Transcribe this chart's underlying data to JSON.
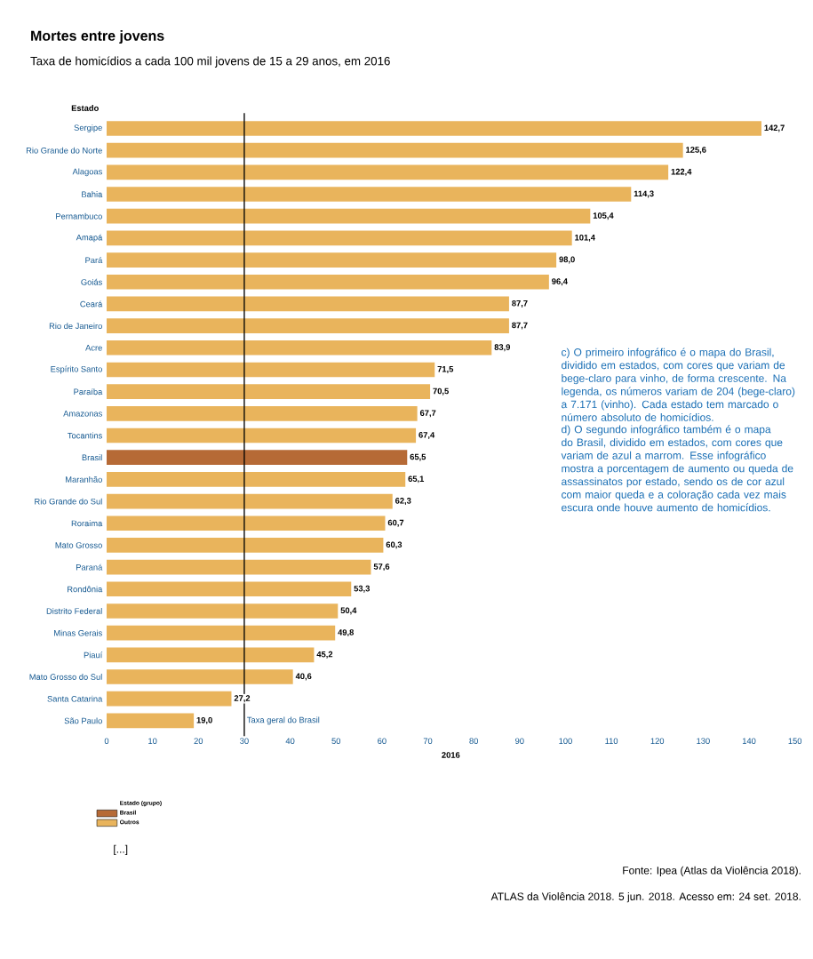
{
  "chart_data": {
    "type": "bar",
    "orientation": "horizontal",
    "title": "Mortes entre jovens",
    "subtitle": "Taxa de homicídios a cada 100 mil jovens de 15 a 29 anos, em 2016",
    "ylabel": "Estado",
    "xlabel": "2016",
    "legend_title": "Estado (grupo)",
    "categories": [
      "Sergipe",
      "Rio Grande do Norte",
      "Alagoas",
      "Bahia",
      "Pernambuco",
      "Amapá",
      "Pará",
      "Goiás",
      "Ceará",
      "Rio de Janeiro",
      "Acre",
      "Espírito Santo",
      "Paraíba",
      "Amazonas",
      "Tocantins",
      "Brasil",
      "Maranhão",
      "Rio Grande do Sul",
      "Roraima",
      "Mato Grosso",
      "Paraná",
      "Rondônia",
      "Distrito Federal",
      "Minas Gerais",
      "Piauí",
      "Mato Grosso do Sul",
      "Santa Catarina",
      "São Paulo"
    ],
    "series": [
      {
        "name": "Brasil",
        "color": "#b66a36",
        "values": [
          null,
          null,
          null,
          null,
          null,
          null,
          null,
          null,
          null,
          null,
          null,
          null,
          null,
          null,
          null,
          65.5,
          null,
          null,
          null,
          null,
          null,
          null,
          null,
          null,
          null,
          null,
          null,
          null
        ],
        "value_labels": [
          null,
          null,
          null,
          null,
          null,
          null,
          null,
          null,
          null,
          null,
          null,
          null,
          null,
          null,
          null,
          "65,5",
          null,
          null,
          null,
          null,
          null,
          null,
          null,
          null,
          null,
          null,
          null,
          null
        ]
      },
      {
        "name": "Outros",
        "color": "#e9b45c",
        "values": [
          142.7,
          125.6,
          122.4,
          114.3,
          105.4,
          101.4,
          98.0,
          96.4,
          87.7,
          87.7,
          83.9,
          71.5,
          70.5,
          67.7,
          67.4,
          null,
          65.1,
          62.3,
          60.7,
          60.3,
          57.6,
          53.3,
          50.4,
          49.8,
          45.2,
          40.6,
          27.2,
          19.0
        ],
        "value_labels": [
          "142,7",
          "125,6",
          "122,4",
          "114,3",
          "105,4",
          "101,4",
          "98,0",
          "96,4",
          "87,7",
          "87,7",
          "83,9",
          "71,5",
          "70,5",
          "67,7",
          "67,4",
          null,
          "65,1",
          "62,3",
          "60,7",
          "60,3",
          "57,6",
          "53,3",
          "50,4",
          "49,8",
          "45,2",
          "40,6",
          "27,2",
          "19,0"
        ]
      }
    ],
    "xlim": [
      0,
      150
    ],
    "xticks": [
      0,
      10,
      20,
      30,
      40,
      50,
      60,
      70,
      80,
      90,
      100,
      110,
      120,
      130,
      140,
      150
    ],
    "grid": false,
    "legend": "bottom left",
    "ref_lines": [
      {
        "axis": "x",
        "value": 30,
        "label": "Taxa geral do Brasil",
        "color": "#000000"
      }
    ],
    "annotations": [
      "c) O primeiro infográfico é o mapa do Brasil, dividido em estados, com cores que variam de bege-claro para vinho, de forma crescente. Na legenda, os números variam de 204 (bege-claro) a 7.171 (vinho). Cada estado tem marcado o número absoluto de homicídios.",
      "d) O segundo infográfico também é o mapa do Brasil, dividido em estados, com cores que variam de azul a marrom. Esse infográfico mostra a porcentagem de aumento ou queda de assassinatos por estado, sendo os de cor azul com maior queda e a coloração cada vez mais escura onde houve aumento de homicídios.",
      "[...]",
      "Fonte: Ipea (Atlas da Violência 2018).",
      "ATLAS da Violência 2018. 5 jun. 2018. Acesso em: 24 set. 2018."
    ]
  }
}
